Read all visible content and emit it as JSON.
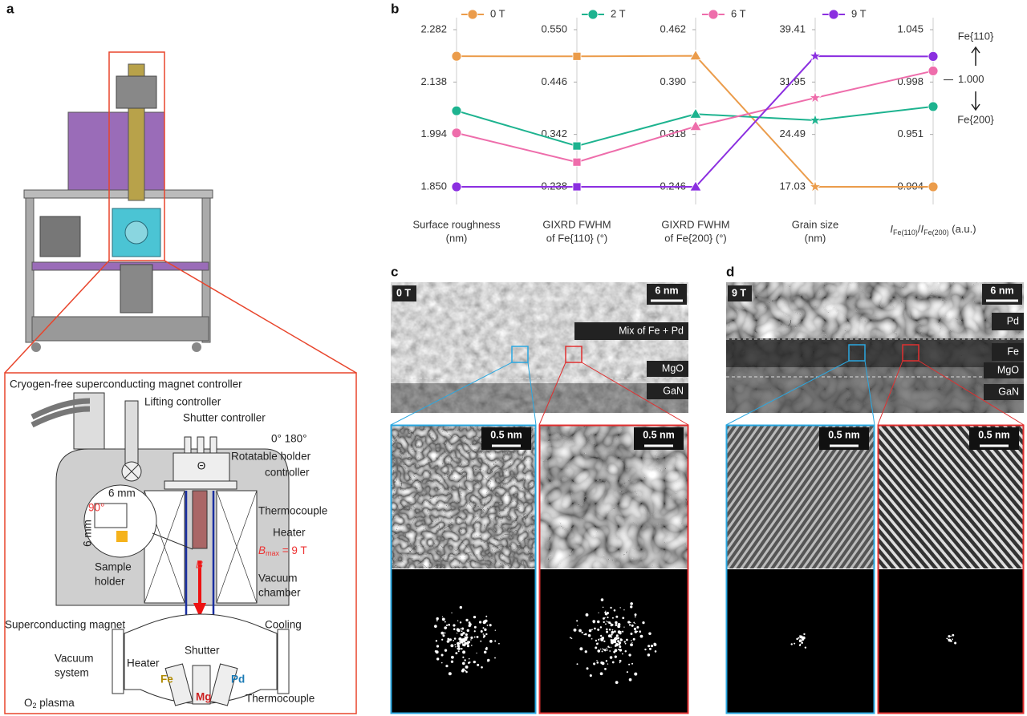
{
  "panels": [
    "a",
    "b",
    "c",
    "d"
  ],
  "chart_data": {
    "type": "parallel",
    "series": [
      {
        "name": "0 T",
        "color": "#eb9c4b",
        "values": [
          2.209,
          0.497,
          0.426,
          17.03,
          0.904
        ]
      },
      {
        "name": "2 T",
        "color": "#1db38f",
        "values": [
          2.059,
          0.319,
          0.346,
          26.51,
          0.976
        ]
      },
      {
        "name": "6 T",
        "color": "#ee6dab",
        "values": [
          1.998,
          0.287,
          0.329,
          29.7,
          1.008
        ]
      },
      {
        "name": "9 T",
        "color": "#8b2fe0",
        "values": [
          1.85,
          0.238,
          0.246,
          35.64,
          1.021
        ]
      }
    ],
    "axes": [
      {
        "label": [
          "Surface roughness",
          "(nm)"
        ],
        "marker": "circle",
        "ylim": [
          1.85,
          2.282
        ],
        "yticks": [
          {
            "value": 1.85,
            "label": "1.850"
          },
          1.994,
          2.138,
          2.282
        ]
      },
      {
        "label": [
          "GIXRD FWHM",
          "of Fe{110} (°)"
        ],
        "marker": "square",
        "ylim": [
          0.238,
          0.55
        ],
        "yticks": [
          0.238,
          0.342,
          0.446,
          {
            "value": 0.55,
            "label": "0.550"
          }
        ]
      },
      {
        "label": [
          "GIXRD FWHM",
          "of Fe{200} (°)"
        ],
        "marker": "triangle",
        "ylim": [
          0.246,
          0.462
        ],
        "yticks": [
          0.246,
          0.318,
          {
            "value": 0.39,
            "label": "0.390"
          },
          0.462
        ]
      },
      {
        "label": [
          "Grain size",
          "(nm)"
        ],
        "marker": "star",
        "ylim": [
          17.03,
          39.41
        ],
        "yticks": [
          17.03,
          24.49,
          31.95,
          39.41
        ]
      },
      {
        "label_parts": [
          "I",
          "Fe(110)",
          "/",
          "I",
          "Fe(200)",
          " (a.u.)"
        ],
        "marker": "circle",
        "ylim": [
          0.904,
          1.045
        ],
        "yticks": [
          0.904,
          0.951,
          0.998,
          1.045
        ]
      }
    ],
    "reference_tick": {
      "value": 1,
      "label": "1.000"
    },
    "annotations": [
      "Fe{110}",
      "Fe{200}"
    ]
  },
  "diagram_a": {
    "labels": [
      "Cryogen-free superconducting magnet controller",
      "Lifting controller",
      "Shutter controller",
      "0° 180°",
      "Rotatable holder",
      "controller",
      "Thermocouple",
      "Heater",
      "Vacuum",
      "chamber",
      "Cooling",
      "Superconducting magnet",
      "Shutter",
      "Vacuum",
      "system",
      "Heater",
      "Thermocouple",
      "90°",
      "6 mm",
      "6 mm",
      "Sample",
      "holder",
      "B",
      "Fe",
      "Mg",
      "Pd",
      "Θ"
    ],
    "bmax": [
      "B",
      "max",
      " = 9 T"
    ],
    "plasma": [
      "O",
      "2",
      " plasma"
    ]
  },
  "panel_c": {
    "field": "0 T",
    "scale": "6 nm",
    "layers": [
      "Mix of Fe + Pd",
      "MgO",
      "GaN"
    ],
    "zoom_scale": [
      "0.5 nm",
      "0.5 nm"
    ]
  },
  "panel_d": {
    "field": "9 T",
    "scale": "6 nm",
    "layers": [
      "Pd",
      "Fe",
      "MgO",
      "GaN"
    ],
    "zoom_scale": [
      "0.5 nm",
      "0.5 nm"
    ]
  }
}
